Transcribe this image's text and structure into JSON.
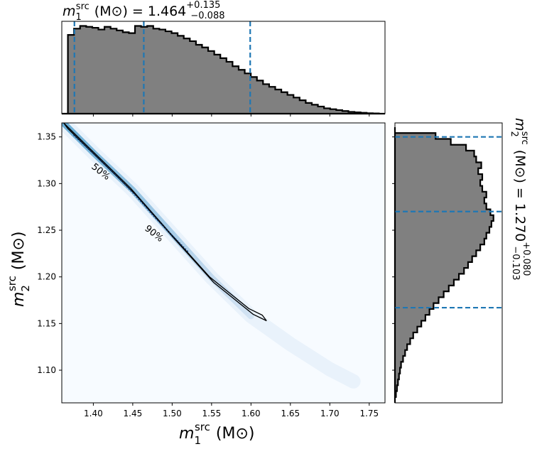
{
  "chart_data": [
    {
      "type": "area",
      "panel": "top-marginal",
      "title": {
        "sym": "m",
        "sub": "1",
        "sup": "src",
        "unit": "(M⊙)",
        "eq": "= 1.464",
        "err_plus": "+0.135",
        "err_minus": "−0.088"
      },
      "xlim": [
        1.36,
        1.77
      ],
      "step_heights": [
        0.0,
        0.88,
        0.95,
        0.98,
        0.97,
        0.96,
        0.94,
        0.97,
        0.95,
        0.93,
        0.91,
        0.9,
        0.98,
        0.97,
        0.98,
        0.95,
        0.94,
        0.92,
        0.9,
        0.87,
        0.84,
        0.81,
        0.77,
        0.74,
        0.7,
        0.66,
        0.62,
        0.58,
        0.53,
        0.49,
        0.45,
        0.41,
        0.37,
        0.33,
        0.3,
        0.27,
        0.24,
        0.21,
        0.18,
        0.15,
        0.12,
        0.1,
        0.08,
        0.06,
        0.05,
        0.04,
        0.03,
        0.02,
        0.015,
        0.01,
        0.005,
        0.003,
        0.0
      ],
      "quantile_lines": [
        1.376,
        1.464,
        1.599
      ],
      "line_color": "#1f77b4",
      "fill_color": "#808080"
    },
    {
      "type": "area",
      "panel": "right-marginal",
      "title": {
        "sym": "m",
        "sub": "2",
        "sup": "src",
        "unit": "(M⊙)",
        "eq": "= 1.270",
        "err_plus": "+0.080",
        "err_minus": "−0.103"
      },
      "ylim": [
        1.065,
        1.365
      ],
      "step_widths": [
        0.0,
        0.01,
        0.02,
        0.03,
        0.04,
        0.05,
        0.06,
        0.08,
        0.1,
        0.12,
        0.15,
        0.18,
        0.22,
        0.26,
        0.3,
        0.34,
        0.38,
        0.43,
        0.48,
        0.53,
        0.58,
        0.63,
        0.68,
        0.72,
        0.76,
        0.8,
        0.84,
        0.88,
        0.9,
        0.93,
        0.95,
        0.97,
        0.94,
        0.9,
        0.88,
        0.9,
        0.86,
        0.84,
        0.86,
        0.82,
        0.85,
        0.8,
        0.78,
        0.7,
        0.55,
        0.4,
        0.0
      ],
      "quantile_lines": [
        1.167,
        1.27,
        1.35
      ],
      "line_color": "#1f77b4",
      "fill_color": "#808080"
    },
    {
      "type": "heatmap",
      "panel": "joint",
      "xlabel": {
        "sym": "m",
        "sub": "1",
        "sup": "src",
        "unit": "(M⊙)"
      },
      "ylabel": {
        "sym": "m",
        "sub": "2",
        "sup": "src",
        "unit": "(M⊙)"
      },
      "xlim": [
        1.36,
        1.77
      ],
      "ylim": [
        1.065,
        1.365
      ],
      "x_ticks": [
        "1.40",
        "1.45",
        "1.50",
        "1.55",
        "1.60",
        "1.65",
        "1.70",
        "1.75"
      ],
      "y_ticks": [
        "1.10",
        "1.15",
        "1.20",
        "1.25",
        "1.30",
        "1.35"
      ],
      "ridge_x": [
        1.362,
        1.4,
        1.45,
        1.5,
        1.55,
        1.6,
        1.65,
        1.7,
        1.73
      ],
      "ridge_y": [
        1.365,
        1.333,
        1.293,
        1.246,
        1.199,
        1.158,
        1.128,
        1.101,
        1.088
      ],
      "contour_50": {
        "x": [
          1.375,
          1.4,
          1.43,
          1.455,
          1.48,
          1.52
        ],
        "y": [
          1.352,
          1.332,
          1.308,
          1.286,
          1.262,
          1.227
        ]
      },
      "contour_90": {
        "x": [
          1.365,
          1.4,
          1.45,
          1.5,
          1.55,
          1.6,
          1.617
        ],
        "y": [
          1.362,
          1.333,
          1.292,
          1.244,
          1.197,
          1.163,
          1.156
        ]
      },
      "contour_labels": [
        "50%",
        "90%"
      ],
      "colormap": "Blues"
    }
  ]
}
